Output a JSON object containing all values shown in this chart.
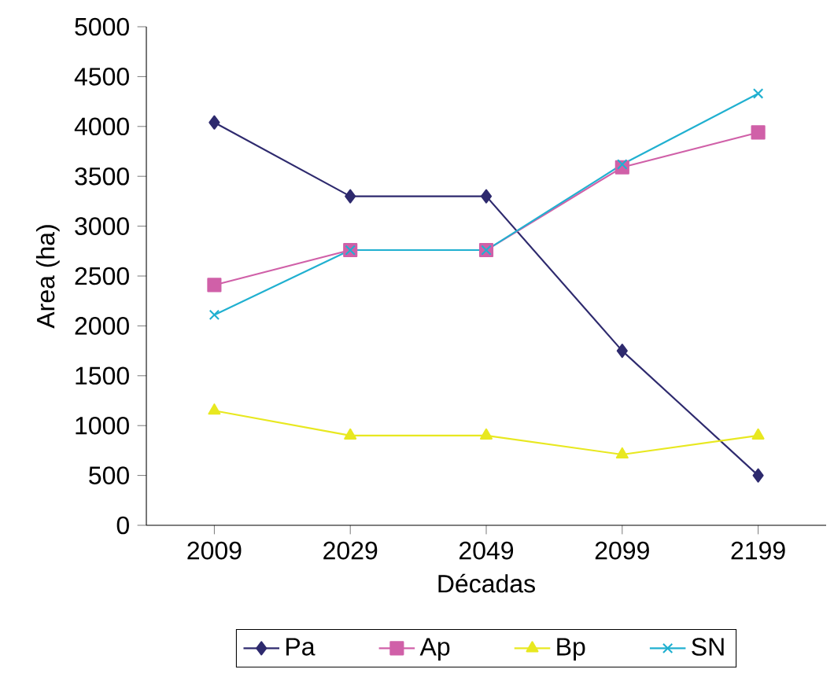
{
  "chart_data": {
    "type": "line",
    "xlabel": "Décadas",
    "ylabel": "Area (ha)",
    "categories": [
      "2009",
      "2029",
      "2049",
      "2099",
      "2199"
    ],
    "series": [
      {
        "name": "Pa",
        "color": "#2e2a6e",
        "marker": "diamond",
        "values": [
          4040,
          3300,
          3300,
          1750,
          500
        ]
      },
      {
        "name": "Ap",
        "color": "#d060a8",
        "marker": "square",
        "values": [
          2410,
          2760,
          2760,
          3590,
          3940
        ]
      },
      {
        "name": "Bp",
        "color": "#e8e820",
        "marker": "triangle",
        "values": [
          1150,
          900,
          900,
          710,
          900
        ]
      },
      {
        "name": "SN",
        "color": "#20b0d0",
        "marker": "cross",
        "values": [
          2110,
          2760,
          2760,
          3620,
          4330
        ]
      }
    ],
    "ylim": [
      0,
      5000
    ],
    "yticks": [
      0,
      500,
      1000,
      1500,
      2000,
      2500,
      3000,
      3500,
      4000,
      4500,
      5000
    ],
    "legend": "bottom",
    "line_style": "solid"
  }
}
